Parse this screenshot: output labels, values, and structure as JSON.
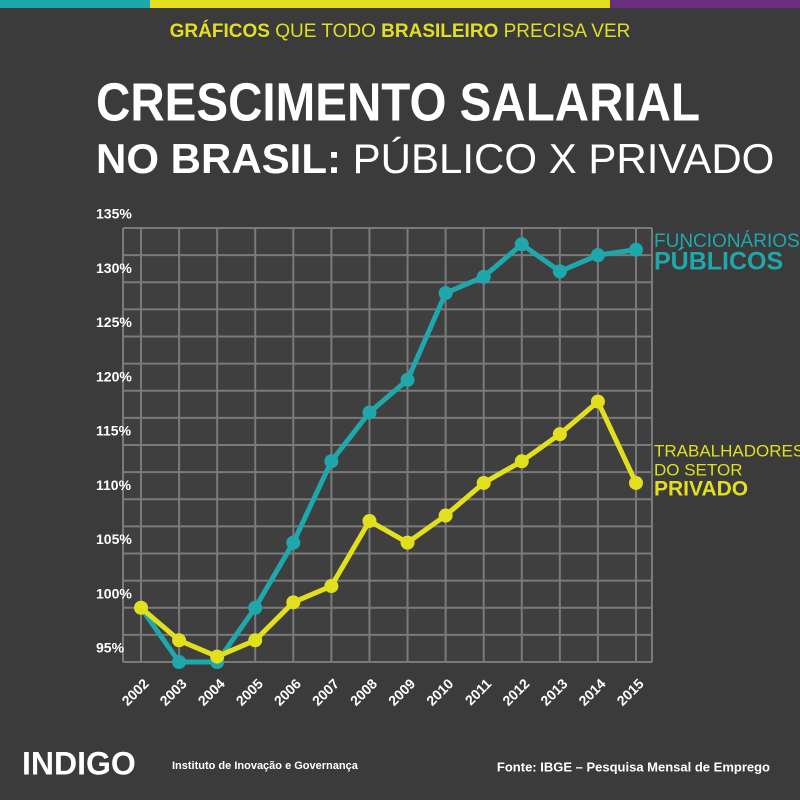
{
  "header": {
    "parts": [
      "GRÁFICOS",
      "QUE TODO",
      "BRASILEIRO",
      "PRECISA VER"
    ]
  },
  "chart_data": {
    "type": "line",
    "title": [
      "CRESCIMENTO SALARIAL",
      "NO BRASIL:",
      "PÚBLICO X PRIVADO"
    ],
    "x": [
      "2002",
      "2003",
      "2004",
      "2005",
      "2006",
      "2007",
      "2008",
      "2009",
      "2010",
      "2011",
      "2012",
      "2013",
      "2014",
      "2015"
    ],
    "series": [
      {
        "name": [
          "FUNCIONÁRIOS",
          "PÚBLICOS"
        ],
        "color": "#1fa8ab",
        "values": [
          100,
          95,
          95,
          100,
          106,
          113.5,
          118,
          121,
          129,
          130.5,
          133.5,
          131,
          132.5,
          133
        ]
      },
      {
        "name": [
          "TRABALHADORES",
          "DO SETOR",
          "PRIVADO"
        ],
        "color": "#e2df1f",
        "values": [
          100,
          97,
          95.5,
          97,
          100.5,
          102,
          108,
          106,
          108.5,
          111.5,
          113.5,
          116,
          119,
          111.5
        ]
      }
    ],
    "ylim": [
      95,
      135
    ],
    "yticks": [
      {
        "value": 95,
        "label": "95%"
      },
      {
        "value": 100,
        "label": "100%"
      },
      {
        "value": 105,
        "label": "105%"
      },
      {
        "value": 110,
        "label": "110%"
      },
      {
        "value": 115,
        "label": "115%"
      },
      {
        "value": 120,
        "label": "120%"
      },
      {
        "value": 125,
        "label": "125%"
      },
      {
        "value": 130,
        "label": "130%"
      },
      {
        "value": 135,
        "label": "135%"
      }
    ],
    "grid": true
  },
  "footer": {
    "logo": "INDIGO",
    "institute": "Instituto de Inovação e Governança",
    "source": "Fonte: IBGE – Pesquisa Mensal de Emprego"
  }
}
